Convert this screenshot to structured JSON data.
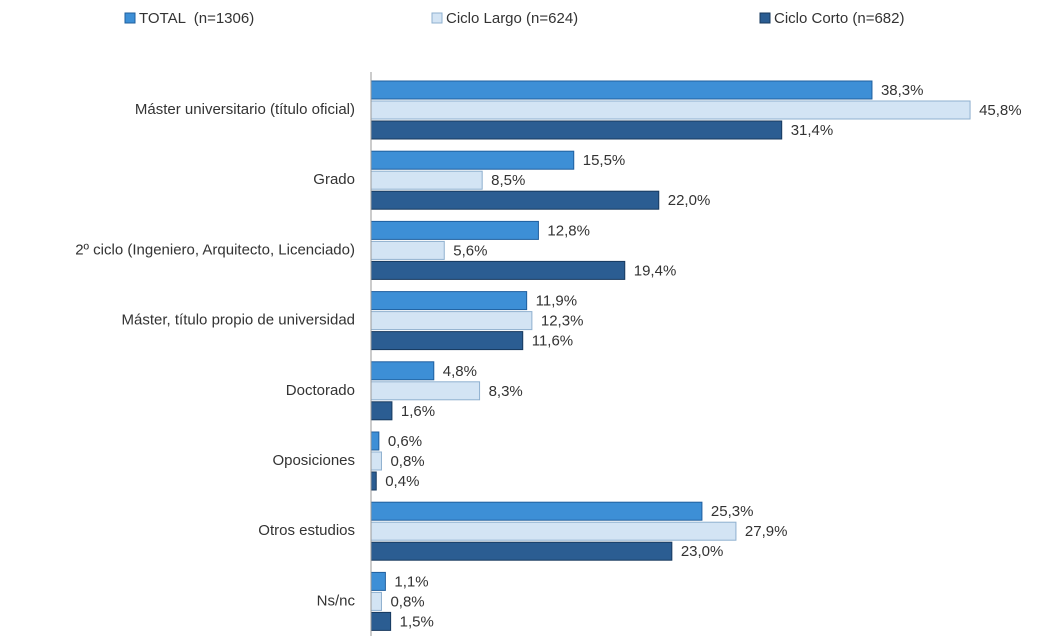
{
  "chart_data": {
    "type": "barh",
    "categories": [
      "Máster universitario (título oficial)",
      "Grado",
      "2º ciclo (Ingeniero, Arquitecto, Licenciado)",
      "Máster, título propio de universidad",
      "Doctorado",
      "Oposiciones",
      "Otros estudios",
      "Ns/nc"
    ],
    "series": [
      {
        "name": "TOTAL  (n=1306)",
        "color": "#3d8fd6",
        "values": [
          38.3,
          15.5,
          12.8,
          11.9,
          4.8,
          0.6,
          25.3,
          1.1
        ],
        "value_labels": [
          "38,3%",
          "15,5%",
          "12,8%",
          "11,9%",
          "4,8%",
          "0,6%",
          "25,3%",
          "1,1%"
        ]
      },
      {
        "name": "Ciclo Largo (n=624)",
        "color": "#d3e4f4",
        "values": [
          45.8,
          8.5,
          5.6,
          12.3,
          8.3,
          0.8,
          27.9,
          0.8
        ],
        "value_labels": [
          "45,8%",
          "8,5%",
          "5,6%",
          "12,3%",
          "8,3%",
          "0,8%",
          "27,9%",
          "0,8%"
        ]
      },
      {
        "name": "Ciclo Corto (n=682)",
        "color": "#2b5d92",
        "values": [
          31.4,
          22.0,
          19.4,
          11.6,
          1.6,
          0.4,
          23.0,
          1.5
        ],
        "value_labels": [
          "31,4%",
          "22,0%",
          "19,4%",
          "11,6%",
          "1,6%",
          "0,4%",
          "23,0%",
          "1,5%"
        ]
      }
    ],
    "xlim": [
      0,
      50
    ],
    "legend": "top"
  }
}
